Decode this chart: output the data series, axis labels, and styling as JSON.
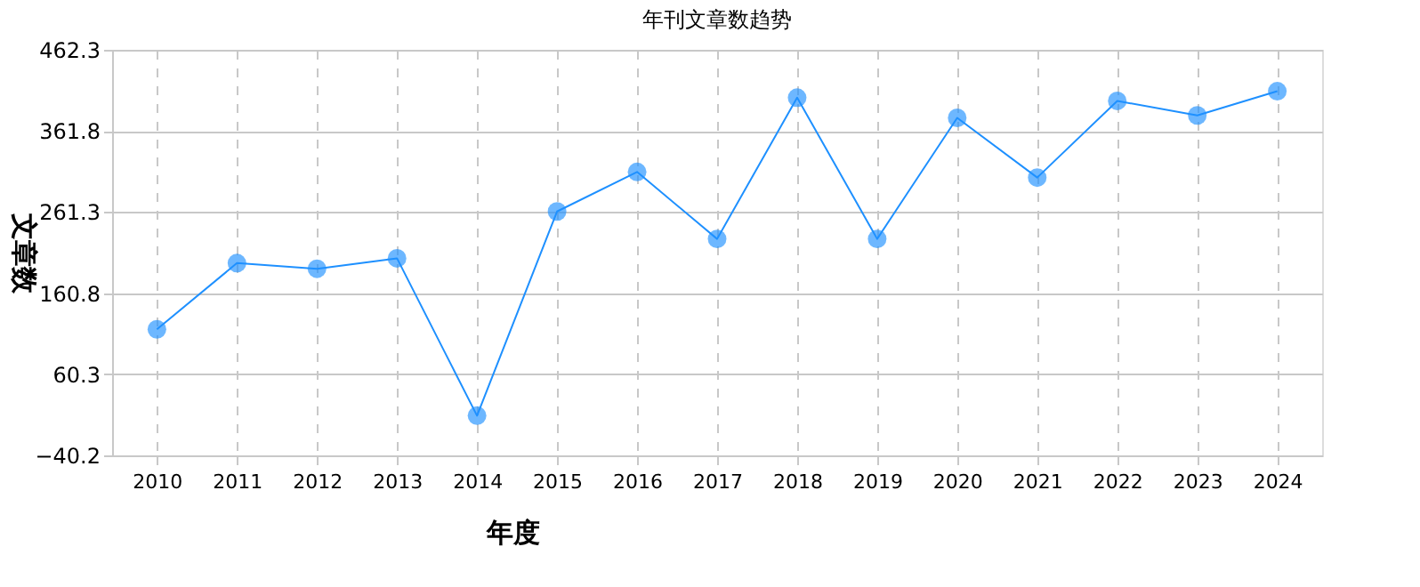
{
  "chart_data": {
    "type": "line",
    "title": "年刊文章数趋势",
    "xlabel": "年度",
    "ylabel": "文章数",
    "categories": [
      "2010",
      "2011",
      "2012",
      "2013",
      "2014",
      "2015",
      "2016",
      "2017",
      "2018",
      "2019",
      "2020",
      "2021",
      "2022",
      "2023",
      "2024"
    ],
    "series": [
      {
        "color": "#1e90ff",
        "values": [
          116,
          198,
          191,
          204,
          9,
          262,
          311,
          228,
          403,
          228,
          378,
          304,
          399,
          381,
          411
        ]
      }
    ],
    "ylim": [
      -40.2,
      462.3
    ],
    "yticks": [
      -40.2,
      60.3,
      160.8,
      261.3,
      361.8,
      462.3
    ],
    "grid": true,
    "marker": "circle",
    "line_style": "solid"
  }
}
